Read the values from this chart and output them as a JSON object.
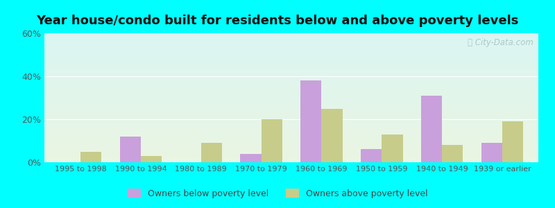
{
  "title": "Year house/condo built for residents below and above poverty levels",
  "categories": [
    "1995 to 1998",
    "1990 to 1994",
    "1980 to 1989",
    "1970 to 1979",
    "1960 to 1969",
    "1950 to 1959",
    "1940 to 1949",
    "1939 or earlier"
  ],
  "below_poverty": [
    0,
    12,
    0,
    4,
    38,
    6,
    31,
    9
  ],
  "above_poverty": [
    5,
    3,
    9,
    20,
    25,
    13,
    8,
    19
  ],
  "below_color": "#c9a0dc",
  "above_color": "#c8cc8a",
  "background_top": "#daf5f2",
  "background_bottom": "#eaf5e2",
  "outer_background": "#00ffff",
  "ylim": [
    0,
    60
  ],
  "yticks": [
    0,
    20,
    40,
    60
  ],
  "bar_width": 0.35,
  "legend_below_label": "Owners below poverty level",
  "legend_above_label": "Owners above poverty level",
  "title_fontsize": 13,
  "tick_fontsize": 8,
  "legend_fontsize": 9
}
